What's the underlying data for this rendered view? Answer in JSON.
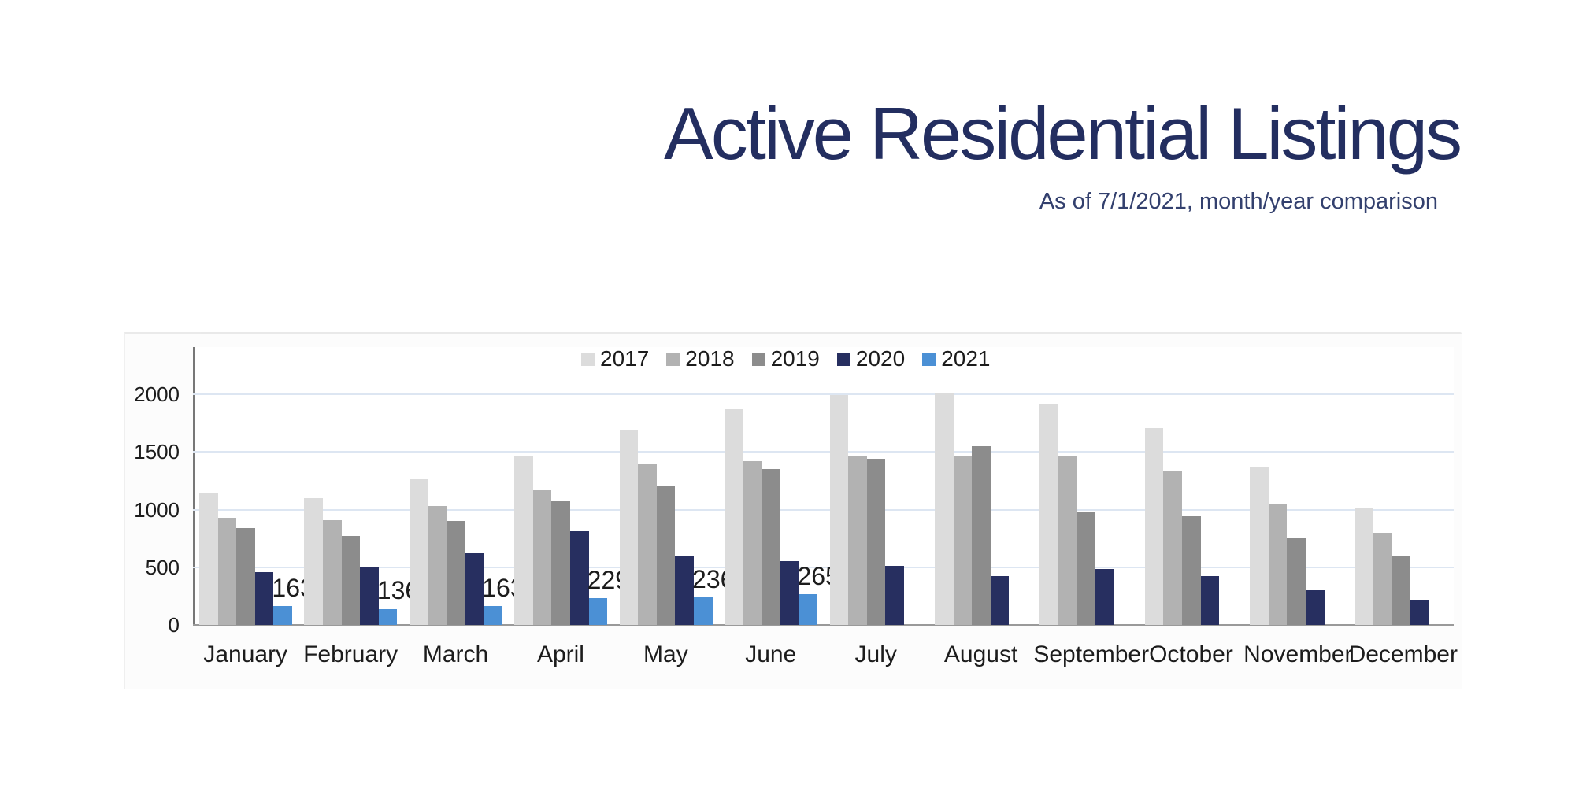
{
  "page": {
    "title": "Active Residential Listings",
    "subtitle": "As of 7/1/2021, month/year comparison"
  },
  "colors": {
    "title_text": "#232e60",
    "subtitle_text": "#33406e",
    "gridline": "#dde6f2",
    "y_axis_line": "#777777",
    "x_axis_line": "#9a9a9a",
    "tick_text": "#1c1c1c"
  },
  "chart_data": {
    "type": "bar",
    "title": "Active Residential Listings",
    "subtitle": "As of 7/1/2021, month/year comparison",
    "categories": [
      "January",
      "February",
      "March",
      "April",
      "May",
      "June",
      "July",
      "August",
      "September",
      "October",
      "November",
      "December"
    ],
    "series": [
      {
        "name": "2017",
        "color": "#dcdcdc",
        "values": [
          1140,
          1100,
          1260,
          1460,
          1690,
          1870,
          1990,
          2010,
          1920,
          1710,
          1370,
          1010
        ]
      },
      {
        "name": "2018",
        "color": "#b2b2b2",
        "values": [
          930,
          910,
          1030,
          1170,
          1390,
          1420,
          1460,
          1460,
          1460,
          1330,
          1050,
          800
        ]
      },
      {
        "name": "2019",
        "color": "#8c8c8c",
        "values": [
          840,
          770,
          900,
          1080,
          1210,
          1350,
          1440,
          1550,
          980,
          940,
          760,
          600
        ]
      },
      {
        "name": "2020",
        "color": "#272f60",
        "values": [
          460,
          505,
          620,
          810,
          600,
          550,
          510,
          420,
          485,
          420,
          300,
          210
        ]
      },
      {
        "name": "2021",
        "color": "#4b90d5",
        "show_data_labels": true,
        "values": [
          163,
          136,
          163,
          229,
          236,
          265,
          null,
          null,
          null,
          null,
          null,
          null
        ]
      }
    ],
    "xlabel": "",
    "ylabel": "",
    "yticks": [
      0,
      500,
      1000,
      1500,
      2000
    ],
    "ylim": [
      0,
      2400
    ],
    "grid": true,
    "legend_position": "top-center"
  }
}
